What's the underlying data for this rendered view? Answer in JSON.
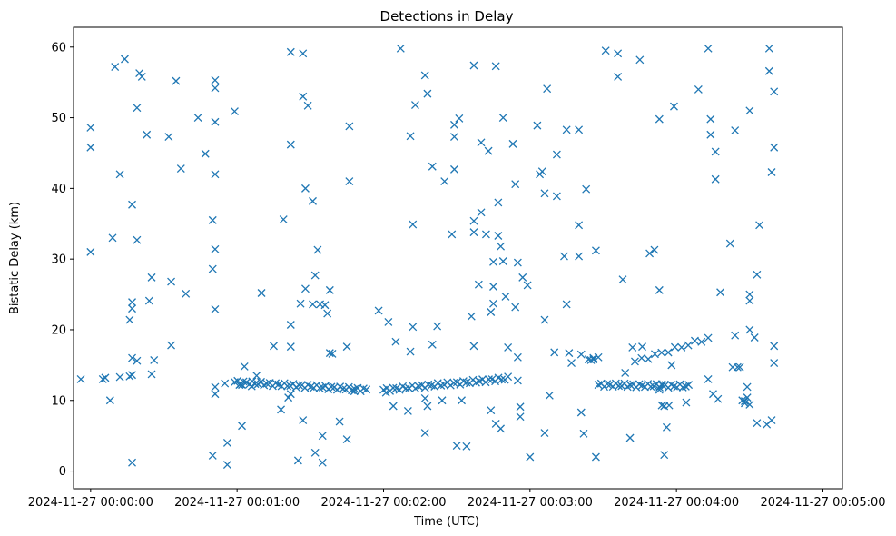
{
  "chart_data": {
    "type": "scatter",
    "title": "Detections in Delay",
    "xlabel": "Time (UTC)",
    "ylabel": "Bistatic Delay (km)",
    "marker": "x",
    "color": "#1f77b4",
    "x_unit": "seconds after 2024-11-27 00:00:00",
    "xlim": [
      -7,
      308
    ],
    "ylim": [
      -2.5,
      62.8
    ],
    "x_ticks": [
      0,
      60,
      120,
      180,
      240,
      300
    ],
    "x_tick_labels": [
      "2024-11-27 00:00:00",
      "2024-11-27 00:01:00",
      "2024-11-27 00:02:00",
      "2024-11-27 00:03:00",
      "2024-11-27 00:04:00",
      "2024-11-27 00:05:00"
    ],
    "y_ticks": [
      0,
      10,
      20,
      30,
      40,
      50,
      60
    ],
    "y_tick_labels": [
      "0",
      "10",
      "20",
      "30",
      "40",
      "50",
      "60"
    ],
    "tracks": [
      {
        "x_start": 59,
        "x_end": 113,
        "y_start": 12.6,
        "y_end": 11.5,
        "count": 46
      },
      {
        "x_start": 120,
        "x_end": 171,
        "y_start": 11.5,
        "y_end": 13.1,
        "count": 40
      },
      {
        "x_start": 208,
        "x_end": 245,
        "y_start": 12.2,
        "y_end": 12.0,
        "count": 32
      },
      {
        "x_start": 223,
        "x_end": 253,
        "y_start": 15.5,
        "y_end": 18.8,
        "count": 12
      }
    ],
    "points": [
      [
        -4,
        13
      ],
      [
        0,
        48.6
      ],
      [
        0,
        45.8
      ],
      [
        0,
        31
      ],
      [
        5,
        13
      ],
      [
        6,
        13.2
      ],
      [
        8,
        10
      ],
      [
        9,
        33
      ],
      [
        10,
        57.2
      ],
      [
        12,
        42
      ],
      [
        12,
        13.3
      ],
      [
        14,
        58.3
      ],
      [
        16,
        21.4
      ],
      [
        16,
        13.4
      ],
      [
        17,
        37.7
      ],
      [
        17,
        23.9
      ],
      [
        17,
        23
      ],
      [
        17,
        16
      ],
      [
        17,
        13.6
      ],
      [
        17,
        1.2
      ],
      [
        19,
        32.7
      ],
      [
        19,
        51.4
      ],
      [
        19,
        15.6
      ],
      [
        20,
        56.3
      ],
      [
        21,
        55.8
      ],
      [
        23,
        47.6
      ],
      [
        24,
        24.1
      ],
      [
        25,
        27.4
      ],
      [
        25,
        13.7
      ],
      [
        26,
        15.7
      ],
      [
        32,
        47.3
      ],
      [
        33,
        26.8
      ],
      [
        33,
        17.8
      ],
      [
        35,
        55.2
      ],
      [
        37,
        42.8
      ],
      [
        39,
        25.1
      ],
      [
        44,
        50
      ],
      [
        47,
        44.9
      ],
      [
        50,
        2.2
      ],
      [
        50,
        28.6
      ],
      [
        50,
        35.5
      ],
      [
        51,
        55.3
      ],
      [
        51,
        54.2
      ],
      [
        51,
        42
      ],
      [
        51,
        49.4
      ],
      [
        51,
        31.4
      ],
      [
        51,
        22.9
      ],
      [
        51,
        11.9
      ],
      [
        51,
        10.9
      ],
      [
        55,
        12.4
      ],
      [
        56,
        0.9
      ],
      [
        56,
        4
      ],
      [
        59,
        50.9
      ],
      [
        61,
        12.2
      ],
      [
        62,
        12.2
      ],
      [
        62,
        6.4
      ],
      [
        63,
        14.8
      ],
      [
        66,
        12
      ],
      [
        68,
        13.5
      ],
      [
        70,
        25.2
      ],
      [
        75,
        17.7
      ],
      [
        78,
        8.7
      ],
      [
        79,
        35.6
      ],
      [
        81,
        10.4
      ],
      [
        82,
        59.3
      ],
      [
        82,
        46.2
      ],
      [
        82,
        20.7
      ],
      [
        82,
        17.6
      ],
      [
        82,
        10.9
      ],
      [
        85,
        1.5
      ],
      [
        86,
        23.7
      ],
      [
        87,
        7.2
      ],
      [
        87,
        53
      ],
      [
        87,
        59.1
      ],
      [
        88,
        25.8
      ],
      [
        88,
        40
      ],
      [
        89,
        51.7
      ],
      [
        91,
        38.2
      ],
      [
        91,
        23.6
      ],
      [
        92,
        27.7
      ],
      [
        92,
        2.6
      ],
      [
        93,
        31.3
      ],
      [
        94,
        23.6
      ],
      [
        95,
        5
      ],
      [
        95,
        1.2
      ],
      [
        96,
        23.5
      ],
      [
        97,
        22.3
      ],
      [
        98,
        25.6
      ],
      [
        98,
        16.7
      ],
      [
        99,
        16.6
      ],
      [
        102,
        7
      ],
      [
        105,
        4.5
      ],
      [
        105,
        17.6
      ],
      [
        106,
        48.8
      ],
      [
        106,
        41
      ],
      [
        108,
        11.3
      ],
      [
        118,
        22.7
      ],
      [
        121,
        11.1
      ],
      [
        122,
        21.1
      ],
      [
        124,
        9.2
      ],
      [
        125,
        18.3
      ],
      [
        127,
        59.8
      ],
      [
        130,
        8.5
      ],
      [
        131,
        47.4
      ],
      [
        131,
        16.9
      ],
      [
        132,
        34.9
      ],
      [
        132,
        20.4
      ],
      [
        133,
        51.8
      ],
      [
        137,
        5.4
      ],
      [
        137,
        10.3
      ],
      [
        137,
        56
      ],
      [
        138,
        9.2
      ],
      [
        138,
        53.4
      ],
      [
        140,
        17.9
      ],
      [
        140,
        43.1
      ],
      [
        142,
        20.5
      ],
      [
        144,
        10
      ],
      [
        145,
        41
      ],
      [
        148,
        33.5
      ],
      [
        149,
        42.7
      ],
      [
        149,
        47.3
      ],
      [
        149,
        49
      ],
      [
        150,
        3.6
      ],
      [
        151,
        49.9
      ],
      [
        152,
        10
      ],
      [
        154,
        3.5
      ],
      [
        156,
        21.9
      ],
      [
        157,
        35.4
      ],
      [
        157,
        57.4
      ],
      [
        157,
        33.8
      ],
      [
        157,
        17.7
      ],
      [
        159,
        26.4
      ],
      [
        160,
        46.5
      ],
      [
        160,
        36.6
      ],
      [
        162,
        33.5
      ],
      [
        163,
        45.3
      ],
      [
        164,
        22.5
      ],
      [
        164,
        8.6
      ],
      [
        165,
        29.6
      ],
      [
        165,
        23.7
      ],
      [
        165,
        26.1
      ],
      [
        166,
        57.3
      ],
      [
        166,
        6.7
      ],
      [
        167,
        38
      ],
      [
        167,
        33.3
      ],
      [
        168,
        31.8
      ],
      [
        168,
        6
      ],
      [
        169,
        50
      ],
      [
        169,
        29.7
      ],
      [
        170,
        24.7
      ],
      [
        171,
        17.5
      ],
      [
        173,
        46.3
      ],
      [
        174,
        40.6
      ],
      [
        174,
        23.2
      ],
      [
        175,
        12.8
      ],
      [
        175,
        29.5
      ],
      [
        175,
        16.1
      ],
      [
        176,
        9.1
      ],
      [
        176,
        7.7
      ],
      [
        177,
        27.4
      ],
      [
        179,
        26.3
      ],
      [
        180,
        2
      ],
      [
        183,
        48.9
      ],
      [
        184,
        42
      ],
      [
        185,
        42.4
      ],
      [
        186,
        39.3
      ],
      [
        186,
        21.4
      ],
      [
        186,
        5.4
      ],
      [
        187,
        54.1
      ],
      [
        188,
        10.7
      ],
      [
        190,
        16.8
      ],
      [
        191,
        38.9
      ],
      [
        191,
        44.8
      ],
      [
        194,
        30.4
      ],
      [
        195,
        48.3
      ],
      [
        195,
        23.6
      ],
      [
        196,
        16.7
      ],
      [
        197,
        15.3
      ],
      [
        200,
        48.3
      ],
      [
        200,
        34.8
      ],
      [
        200,
        30.4
      ],
      [
        201,
        16.5
      ],
      [
        201,
        8.3
      ],
      [
        202,
        5.3
      ],
      [
        203,
        39.9
      ],
      [
        204,
        15.8
      ],
      [
        205,
        15.7
      ],
      [
        206,
        16
      ],
      [
        206,
        15.8
      ],
      [
        207,
        2
      ],
      [
        207,
        31.2
      ],
      [
        208,
        16.1
      ],
      [
        211,
        59.5
      ],
      [
        216,
        55.8
      ],
      [
        216,
        59.1
      ],
      [
        218,
        27.1
      ],
      [
        219,
        13.9
      ],
      [
        221,
        4.7
      ],
      [
        222,
        17.5
      ],
      [
        225,
        58.2
      ],
      [
        226,
        17.6
      ],
      [
        229,
        30.8
      ],
      [
        231,
        31.3
      ],
      [
        233,
        25.6
      ],
      [
        233,
        49.8
      ],
      [
        233,
        11.5
      ],
      [
        234,
        12.3
      ],
      [
        234,
        9.3
      ],
      [
        235,
        9.2
      ],
      [
        235,
        2.3
      ],
      [
        236,
        6.2
      ],
      [
        237,
        9.3
      ],
      [
        238,
        15
      ],
      [
        239,
        51.6
      ],
      [
        244,
        9.7
      ],
      [
        249,
        54
      ],
      [
        253,
        59.8
      ],
      [
        253,
        13
      ],
      [
        254,
        49.8
      ],
      [
        254,
        47.6
      ],
      [
        255,
        10.9
      ],
      [
        256,
        45.2
      ],
      [
        256,
        41.3
      ],
      [
        257,
        10.2
      ],
      [
        258,
        25.3
      ],
      [
        262,
        32.2
      ],
      [
        263,
        14.7
      ],
      [
        264,
        19.2
      ],
      [
        264,
        48.2
      ],
      [
        265,
        14.7
      ],
      [
        266,
        14.7
      ],
      [
        267,
        10
      ],
      [
        268,
        9.9
      ],
      [
        268,
        9.6
      ],
      [
        269,
        11.9
      ],
      [
        269,
        10.4
      ],
      [
        270,
        51
      ],
      [
        270,
        25
      ],
      [
        270,
        24.1
      ],
      [
        270,
        20
      ],
      [
        270,
        9.4
      ],
      [
        272,
        18.9
      ],
      [
        273,
        27.8
      ],
      [
        273,
        6.8
      ],
      [
        274,
        34.8
      ],
      [
        277,
        6.6
      ],
      [
        278,
        59.8
      ],
      [
        278,
        56.6
      ],
      [
        279,
        42.3
      ],
      [
        279,
        7.2
      ],
      [
        280,
        53.7
      ],
      [
        280,
        45.8
      ],
      [
        280,
        17.7
      ],
      [
        280,
        15.3
      ]
    ]
  }
}
